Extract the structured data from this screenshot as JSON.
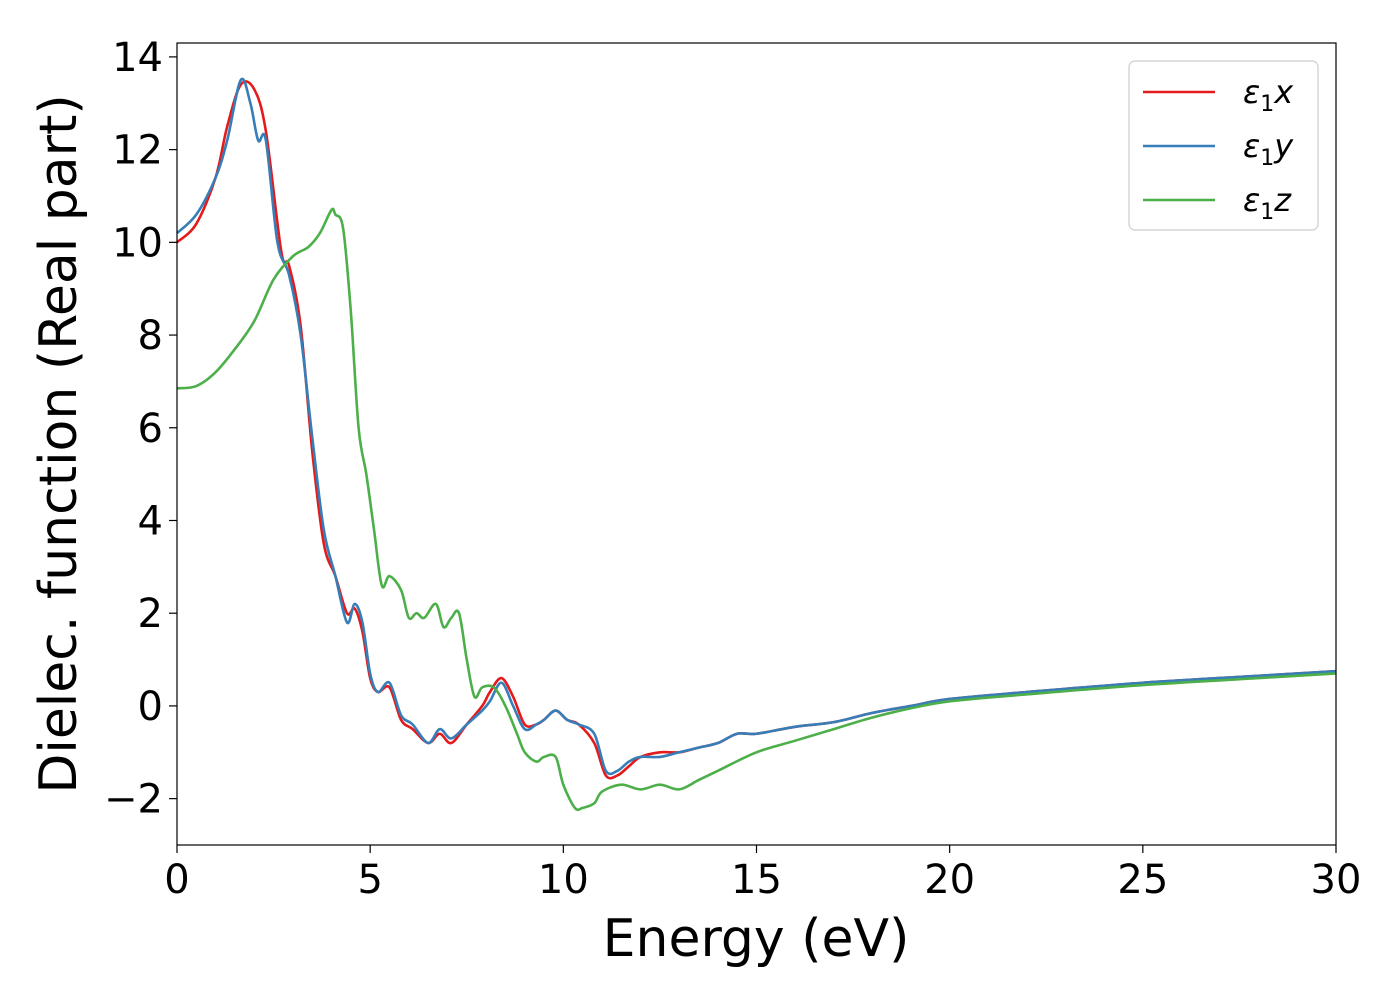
{
  "chart_data": {
    "type": "line",
    "title": "",
    "xlabel": "Energy (eV)",
    "ylabel": "Dielec. function (Real part)",
    "xlim": [
      0,
      30
    ],
    "ylim": [
      -3,
      14.3
    ],
    "xticks": [
      0,
      5,
      10,
      15,
      20,
      25,
      30
    ],
    "xtick_labels": [
      "0",
      "5",
      "10",
      "15",
      "20",
      "25",
      "30"
    ],
    "yticks": [
      -2,
      0,
      2,
      4,
      6,
      8,
      10,
      12,
      14
    ],
    "ytick_labels": [
      "−2",
      "0",
      "2",
      "4",
      "6",
      "8",
      "10",
      "12",
      "14"
    ],
    "grid": false,
    "legend_position": "top-right",
    "series": [
      {
        "name": "ε1x",
        "legend": {
          "symbol": "ε",
          "sub": "1",
          "suffix": "x"
        },
        "color": "#e41a1c",
        "x": [
          0,
          0.5,
          1.0,
          1.3,
          1.65,
          2.0,
          2.3,
          2.7,
          2.9,
          3.2,
          3.5,
          3.8,
          4.1,
          4.4,
          4.6,
          4.8,
          5.0,
          5.2,
          5.5,
          5.8,
          6.1,
          6.5,
          6.8,
          7.1,
          7.5,
          7.9,
          8.1,
          8.4,
          8.7,
          9.0,
          9.3,
          9.5,
          9.8,
          10.1,
          10.4,
          10.8,
          11.1,
          11.4,
          11.7,
          12.0,
          12.5,
          13.0,
          13.5,
          14.0,
          14.5,
          15.0,
          16.0,
          17.0,
          18.0,
          19.0,
          20.0,
          22.0,
          25.0,
          28.0,
          30.0
        ],
        "y": [
          10.0,
          10.4,
          11.4,
          12.5,
          13.4,
          13.3,
          12.4,
          9.8,
          9.5,
          8.2,
          5.5,
          3.5,
          2.8,
          2.0,
          2.1,
          1.6,
          0.6,
          0.3,
          0.4,
          -0.3,
          -0.5,
          -0.8,
          -0.6,
          -0.8,
          -0.4,
          0.0,
          0.3,
          0.6,
          0.2,
          -0.4,
          -0.4,
          -0.3,
          -0.1,
          -0.3,
          -0.4,
          -0.8,
          -1.5,
          -1.5,
          -1.3,
          -1.1,
          -1.0,
          -1.0,
          -0.9,
          -0.8,
          -0.6,
          -0.6,
          -0.45,
          -0.35,
          -0.15,
          0.0,
          0.15,
          0.3,
          0.5,
          0.65,
          0.75
        ]
      },
      {
        "name": "ε1y",
        "legend": {
          "symbol": "ε",
          "sub": "1",
          "suffix": "y"
        },
        "color": "#377eb8",
        "x": [
          0,
          0.5,
          1.0,
          1.3,
          1.65,
          1.9,
          2.1,
          2.3,
          2.6,
          2.9,
          3.2,
          3.5,
          3.8,
          4.1,
          4.4,
          4.6,
          4.8,
          5.0,
          5.2,
          5.5,
          5.8,
          6.1,
          6.5,
          6.8,
          7.1,
          7.5,
          7.9,
          8.1,
          8.4,
          8.7,
          9.0,
          9.3,
          9.5,
          9.8,
          10.1,
          10.4,
          10.8,
          11.1,
          11.4,
          11.7,
          12.0,
          12.5,
          13.0,
          13.5,
          14.0,
          14.5,
          15.0,
          16.0,
          17.0,
          18.0,
          19.0,
          20.0,
          22.0,
          25.0,
          28.0,
          30.0
        ],
        "y": [
          10.2,
          10.6,
          11.4,
          12.2,
          13.5,
          13.0,
          12.2,
          12.2,
          10.0,
          9.3,
          8.0,
          5.8,
          3.8,
          2.8,
          1.8,
          2.2,
          1.8,
          0.7,
          0.3,
          0.5,
          -0.2,
          -0.4,
          -0.8,
          -0.5,
          -0.7,
          -0.4,
          -0.1,
          0.1,
          0.5,
          0.0,
          -0.5,
          -0.4,
          -0.3,
          -0.1,
          -0.3,
          -0.4,
          -0.6,
          -1.4,
          -1.4,
          -1.2,
          -1.1,
          -1.1,
          -1.0,
          -0.9,
          -0.8,
          -0.6,
          -0.6,
          -0.45,
          -0.35,
          -0.15,
          0.0,
          0.15,
          0.3,
          0.5,
          0.65,
          0.75
        ]
      },
      {
        "name": "ε1z",
        "legend": {
          "symbol": "ε",
          "sub": "1",
          "suffix": "z"
        },
        "color": "#4daf4a",
        "x": [
          0,
          0.5,
          1.0,
          1.5,
          2.0,
          2.5,
          3.0,
          3.4,
          3.7,
          4.0,
          4.1,
          4.3,
          4.5,
          4.7,
          4.9,
          5.1,
          5.3,
          5.5,
          5.8,
          6.0,
          6.2,
          6.4,
          6.7,
          6.9,
          7.1,
          7.3,
          7.5,
          7.7,
          7.9,
          8.2,
          8.5,
          8.8,
          9.0,
          9.3,
          9.5,
          9.8,
          10.0,
          10.3,
          10.5,
          10.8,
          11.0,
          11.5,
          12.0,
          12.5,
          13.0,
          13.5,
          14.0,
          15.0,
          16.0,
          17.0,
          18.0,
          19.0,
          20.0,
          22.0,
          25.0,
          28.0,
          30.0
        ],
        "y": [
          6.85,
          6.9,
          7.2,
          7.7,
          8.3,
          9.2,
          9.7,
          9.9,
          10.2,
          10.7,
          10.6,
          10.3,
          8.5,
          6.0,
          5.0,
          3.8,
          2.6,
          2.8,
          2.5,
          1.9,
          2.0,
          1.9,
          2.2,
          1.7,
          1.9,
          2.0,
          1.0,
          0.2,
          0.4,
          0.4,
          0.0,
          -0.6,
          -1.0,
          -1.2,
          -1.1,
          -1.1,
          -1.7,
          -2.2,
          -2.2,
          -2.1,
          -1.85,
          -1.7,
          -1.8,
          -1.7,
          -1.8,
          -1.6,
          -1.4,
          -1.0,
          -0.75,
          -0.5,
          -0.25,
          -0.05,
          0.1,
          0.25,
          0.45,
          0.6,
          0.7
        ]
      }
    ]
  }
}
